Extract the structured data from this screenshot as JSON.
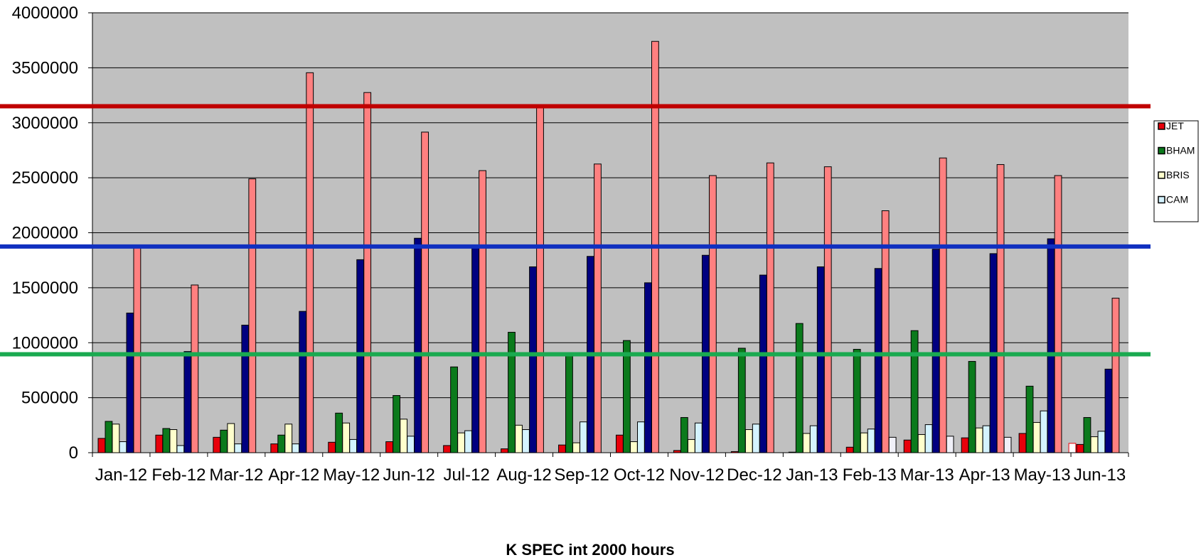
{
  "chart_data": {
    "type": "bar",
    "xlabel": "K SPEC int 2000 hours",
    "ylabel": "",
    "ylim": [
      0,
      4000000
    ],
    "yticks": [
      0,
      500000,
      1000000,
      1500000,
      2000000,
      2500000,
      3000000,
      3500000,
      4000000
    ],
    "grid": true,
    "categories": [
      "Jan-12",
      "Feb-12",
      "Mar-12",
      "Apr-12",
      "May-12",
      "Jun-12",
      "Jul-12",
      "Aug-12",
      "Sep-12",
      "Oct-12",
      "Nov-12",
      "Dec-12",
      "Jan-13",
      "Feb-13",
      "Mar-13",
      "Apr-13",
      "May-13",
      "Jun-13"
    ],
    "legend": {
      "position": "right",
      "entries": [
        "JET",
        "BHAM",
        "BRIS",
        "CAM"
      ]
    },
    "series": [
      {
        "name": "JET",
        "color": "#e8000b",
        "values": [
          130000,
          160000,
          140000,
          80000,
          95000,
          100000,
          65000,
          35000,
          70000,
          160000,
          20000,
          10000,
          5000,
          50000,
          115000,
          135000,
          175000,
          75000
        ]
      },
      {
        "name": "BHAM",
        "color": "#0b7a1c",
        "values": [
          285000,
          220000,
          205000,
          160000,
          360000,
          520000,
          780000,
          1095000,
          880000,
          1020000,
          320000,
          950000,
          1175000,
          940000,
          1110000,
          830000,
          605000,
          320000
        ]
      },
      {
        "name": "BRIS",
        "color": "#ffffcc",
        "values": [
          260000,
          210000,
          265000,
          260000,
          270000,
          305000,
          180000,
          250000,
          90000,
          100000,
          120000,
          210000,
          175000,
          180000,
          165000,
          225000,
          275000,
          145000
        ]
      },
      {
        "color": "#d4f3ff",
        "values": [
          100000,
          65000,
          80000,
          80000,
          120000,
          150000,
          200000,
          210000,
          280000,
          280000,
          270000,
          260000,
          245000,
          215000,
          255000,
          245000,
          380000,
          195000
        ]
      },
      {
        "color": "#000080",
        "values": [
          1270000,
          920000,
          1160000,
          1285000,
          1755000,
          1950000,
          1870000,
          1690000,
          1785000,
          1545000,
          1795000,
          1615000,
          1690000,
          1675000,
          1850000,
          1810000,
          1945000,
          760000
        ]
      },
      {
        "color": "#ff8080",
        "values": [
          1870000,
          1525000,
          2490000,
          3455000,
          3275000,
          2915000,
          2565000,
          3165000,
          2625000,
          3740000,
          2520000,
          2635000,
          2600000,
          2200000,
          2680000,
          2620000,
          2520000,
          1405000
        ]
      },
      {
        "color": "#f0f0f8",
        "values": [
          0,
          0,
          0,
          0,
          0,
          0,
          0,
          0,
          0,
          0,
          0,
          0,
          0,
          140000,
          150000,
          140000,
          0,
          0
        ]
      },
      {
        "color": "#ffffff",
        "stroke": "#e8000b",
        "values": [
          0,
          0,
          0,
          0,
          0,
          0,
          0,
          0,
          0,
          0,
          0,
          0,
          0,
          0,
          0,
          0,
          85000,
          0
        ]
      }
    ],
    "reference_lines": [
      {
        "value": 3150000,
        "color": "#c00000"
      },
      {
        "value": 1875000,
        "color": "#1030c0"
      },
      {
        "value": 895000,
        "color": "#1aaa50"
      }
    ]
  }
}
